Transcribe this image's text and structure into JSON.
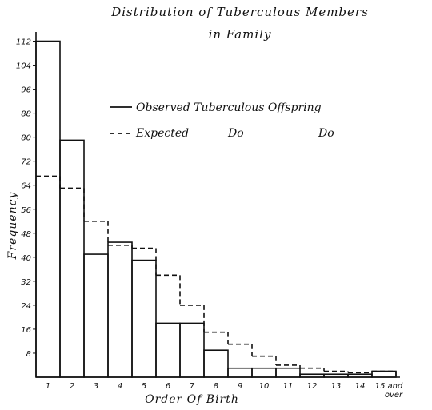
{
  "chart_data": {
    "type": "bar",
    "title": "Distribution of Tuberculous Members",
    "subtitle": "in Family",
    "xlabel": "Order Of Birth",
    "ylabel": "Frequency",
    "categories": [
      "1",
      "2",
      "3",
      "4",
      "5",
      "6",
      "7",
      "8",
      "9",
      "10",
      "11",
      "12",
      "13",
      "14",
      "15 and over"
    ],
    "ylim": [
      0,
      114
    ],
    "yticks": [
      8,
      16,
      24,
      32,
      40,
      48,
      56,
      64,
      72,
      80,
      88,
      96,
      104,
      112
    ],
    "ytick_labels": [
      "8",
      "16",
      "24",
      "32",
      "40",
      "48",
      "56",
      "64",
      "72",
      "80",
      "88",
      "96",
      "104",
      "112"
    ],
    "series": [
      {
        "name": "Observed Tuberculous Offspring",
        "style": "solid",
        "values": [
          112,
          79,
          41,
          45,
          39,
          18,
          18,
          9,
          3,
          3,
          3,
          1,
          1,
          1,
          2
        ]
      },
      {
        "name": "Expected Do Do",
        "style": "dashed",
        "values": [
          67,
          63,
          52,
          44,
          43,
          34,
          24,
          15,
          11,
          7,
          4,
          3,
          2,
          1.5,
          2
        ]
      }
    ],
    "legend": {
      "observed_label": "Observed Tuberculous Offspring",
      "expected_label": "Expected",
      "ditto_1": "Do",
      "ditto_2": "Do",
      "placement": "top-right"
    },
    "grid": false,
    "colors": {
      "ink": "#111111",
      "background": "#ffffff"
    }
  }
}
